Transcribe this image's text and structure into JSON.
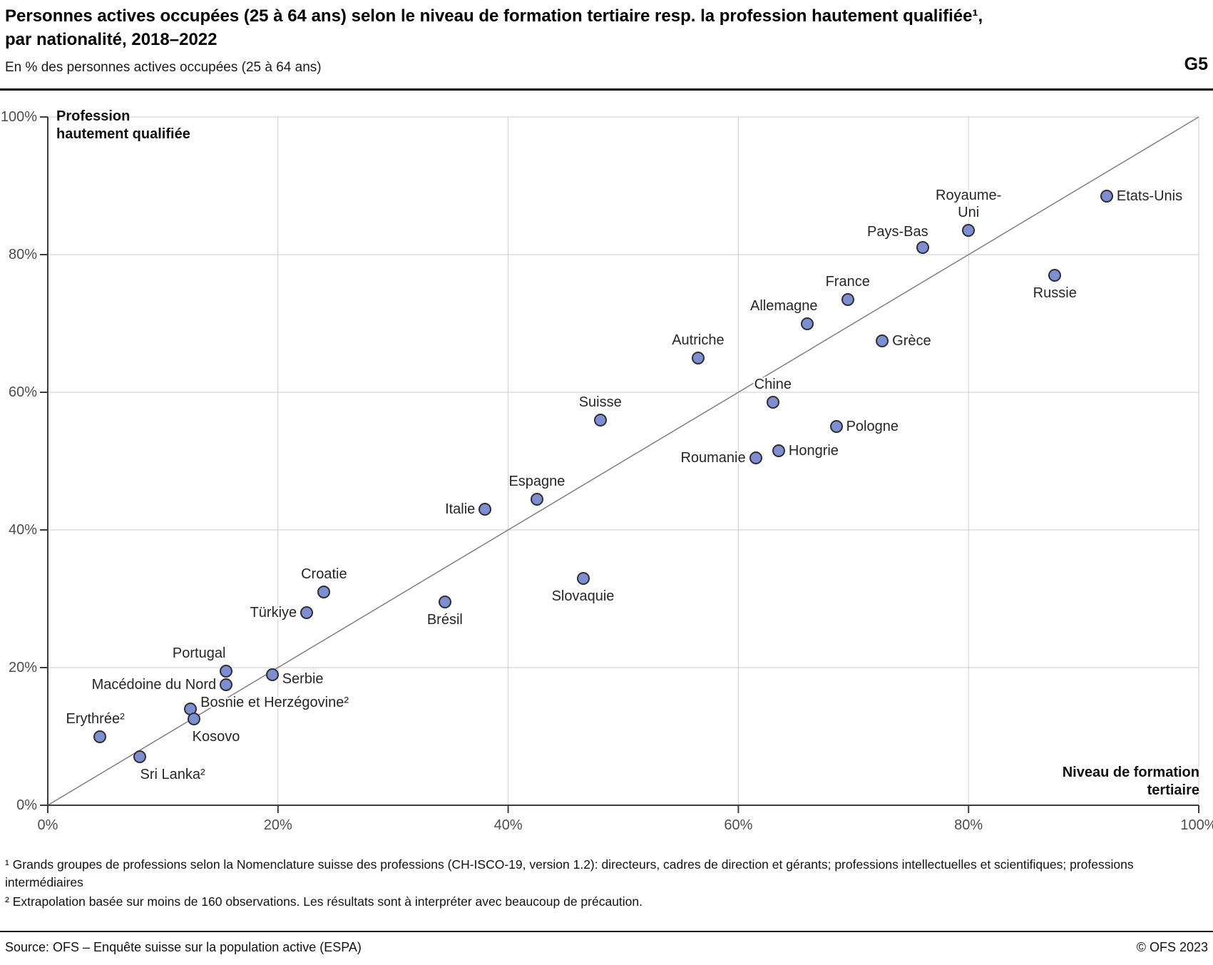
{
  "header": {
    "title_line1": "Personnes actives occupées (25 à 64 ans) selon le niveau de formation tertiaire resp. la profession hautement qualifiée¹,",
    "title_line2": "par nationalité, 2018–2022",
    "subtitle": "En % des personnes actives occupées (25 à 64 ans)",
    "graph_id": "G5"
  },
  "chart_data": {
    "type": "scatter",
    "title": "Personnes actives occupées (25 à 64 ans) selon le niveau de formation tertiaire resp. la profession hautement qualifiée, par nationalité, 2018–2022",
    "subtitle": "En % des personnes actives occupées (25 à 64 ans)",
    "xlabel": "Niveau de formation\ntertiaire",
    "ylabel": "Profession\nhautement qualifiée",
    "xlim": [
      0,
      100
    ],
    "ylim": [
      0,
      100
    ],
    "x_ticks": [
      "0%",
      "20%",
      "40%",
      "60%",
      "80%",
      "100%"
    ],
    "y_ticks": [
      "100%",
      "80%",
      "60%",
      "40%",
      "20%",
      "0%"
    ],
    "grid": true,
    "identity_line": true,
    "legend": "none",
    "point_color": "#7d8ed3",
    "point_stroke": "#2f2f2f",
    "gridline_color": "#cccccc",
    "axis_color": "#3d3d3d",
    "diagonal_color": "#7f7f7f",
    "points": [
      {
        "label": "Etats-Unis",
        "x": 92,
        "y": 88.5,
        "anchor": "right"
      },
      {
        "label": "Russie",
        "x": 87.5,
        "y": 77,
        "anchor": "below"
      },
      {
        "label": "Royaume-\nUni",
        "x": 80,
        "y": 83.5,
        "anchor": "above"
      },
      {
        "label": "Pays-Bas",
        "x": 76,
        "y": 81,
        "anchor": "above-left"
      },
      {
        "label": "Grèce",
        "x": 72.5,
        "y": 67.5,
        "anchor": "right"
      },
      {
        "label": "France",
        "x": 69.5,
        "y": 73.5,
        "anchor": "above"
      },
      {
        "label": "Pologne",
        "x": 68.5,
        "y": 55,
        "anchor": "right"
      },
      {
        "label": "Allemagne",
        "x": 66,
        "y": 70,
        "anchor": "above",
        "dx": -33
      },
      {
        "label": "Hongrie",
        "x": 63.5,
        "y": 51.5,
        "anchor": "right"
      },
      {
        "label": "Chine",
        "x": 63,
        "y": 58.5,
        "anchor": "above"
      },
      {
        "label": "Roumanie",
        "x": 61.5,
        "y": 50.5,
        "anchor": "left"
      },
      {
        "label": "Autriche",
        "x": 56.5,
        "y": 65,
        "anchor": "above"
      },
      {
        "label": "Suisse",
        "x": 48,
        "y": 56,
        "anchor": "above"
      },
      {
        "label": "Slovaquie",
        "x": 46.5,
        "y": 33,
        "anchor": "below"
      },
      {
        "label": "Espagne",
        "x": 42.5,
        "y": 44.5,
        "anchor": "above"
      },
      {
        "label": "Italie",
        "x": 38,
        "y": 43,
        "anchor": "left"
      },
      {
        "label": "Brésil",
        "x": 34.5,
        "y": 29.5,
        "anchor": "below"
      },
      {
        "label": "Croatie",
        "x": 24,
        "y": 31,
        "anchor": "above"
      },
      {
        "label": "Türkiye",
        "x": 22.5,
        "y": 28,
        "anchor": "left"
      },
      {
        "label": "Serbie",
        "x": 19.5,
        "y": 19,
        "anchor": "right",
        "dy": 6
      },
      {
        "label": "Portugal",
        "x": 15.5,
        "y": 19.5,
        "anchor": "above",
        "dx": -38
      },
      {
        "label": "Macédoine du Nord",
        "x": 15.5,
        "y": 17.5,
        "anchor": "left"
      },
      {
        "label": "Bosnie et Herzégovine²",
        "x": 12.4,
        "y": 14,
        "anchor": "right",
        "dy": -9
      },
      {
        "label": "Kosovo",
        "x": 12.7,
        "y": 12.5,
        "anchor": "below",
        "dx": 31
      },
      {
        "label": "Erythrée²",
        "x": 4.5,
        "y": 10,
        "anchor": "above",
        "dx": -6
      },
      {
        "label": "Sri Lanka²",
        "x": 8,
        "y": 7,
        "anchor": "below",
        "dx": 46
      }
    ]
  },
  "footnotes": [
    "¹ Grands groupes de professions selon la Nomenclature suisse des professions (CH-ISCO-19, version 1.2): directeurs, cadres de direction et gérants; professions intellectuelles et scientifiques; professions intermédiaires",
    "² Extrapolation basée sur moins de 160 observations. Les résultats sont à interpréter avec beaucoup de précaution."
  ],
  "footer": {
    "source": "Source: OFS – Enquête suisse sur la population active (ESPA)",
    "copyright": "© OFS 2023"
  }
}
